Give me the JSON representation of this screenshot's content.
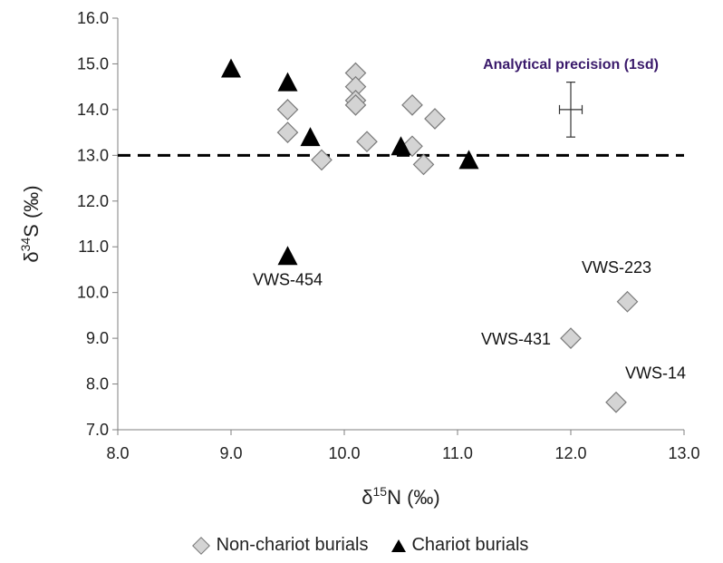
{
  "chart_data": {
    "type": "scatter",
    "xlabel_main": "δ",
    "xlabel_sup": "15",
    "xlabel_rest": "N (‰)",
    "ylabel_main": "δ",
    "ylabel_sup": "34",
    "ylabel_rest": "S (‰)",
    "xlim": [
      8.0,
      13.0
    ],
    "ylim": [
      7.0,
      16.0
    ],
    "x_ticks": [
      "8.0",
      "9.0",
      "10.0",
      "11.0",
      "12.0",
      "13.0"
    ],
    "y_ticks": [
      "7.0",
      "8.0",
      "9.0",
      "10.0",
      "11.0",
      "12.0",
      "13.0",
      "14.0",
      "15.0",
      "16.0"
    ],
    "reference_line_y": 13.0,
    "series": [
      {
        "name": "Non-chariot burials",
        "marker": "diamond",
        "color": "#d4d4d4",
        "points": [
          {
            "x": 9.5,
            "y": 14.0
          },
          {
            "x": 9.5,
            "y": 13.5
          },
          {
            "x": 9.8,
            "y": 12.9
          },
          {
            "x": 10.1,
            "y": 14.8
          },
          {
            "x": 10.1,
            "y": 14.5
          },
          {
            "x": 10.1,
            "y": 14.2
          },
          {
            "x": 10.1,
            "y": 14.1
          },
          {
            "x": 10.2,
            "y": 13.3
          },
          {
            "x": 10.6,
            "y": 14.1
          },
          {
            "x": 10.6,
            "y": 13.2
          },
          {
            "x": 10.7,
            "y": 12.8
          },
          {
            "x": 10.8,
            "y": 13.8
          },
          {
            "x": 12.0,
            "y": 9.0
          },
          {
            "x": 12.5,
            "y": 9.8
          },
          {
            "x": 12.4,
            "y": 7.6
          }
        ]
      },
      {
        "name": "Chariot burials",
        "marker": "triangle",
        "color": "#000000",
        "points": [
          {
            "x": 9.0,
            "y": 14.9
          },
          {
            "x": 9.5,
            "y": 14.6
          },
          {
            "x": 9.7,
            "y": 13.4
          },
          {
            "x": 10.5,
            "y": 13.2
          },
          {
            "x": 11.1,
            "y": 12.9
          },
          {
            "x": 9.5,
            "y": 10.8
          }
        ]
      }
    ],
    "annotations": [
      {
        "text": "VWS-454",
        "x": 9.5,
        "y": 10.8
      },
      {
        "text": "VWS-223",
        "x": 12.5,
        "y": 9.8
      },
      {
        "text": "VWS-431",
        "x": 12.0,
        "y": 9.0
      },
      {
        "text": "VWS-14",
        "x": 12.4,
        "y": 7.6
      }
    ],
    "error_bar": {
      "label": "Analytical precision (1sd)",
      "x": 12.0,
      "y": 14.0,
      "xerr": 0.1,
      "yerr": 0.6
    },
    "legend_position": "bottom"
  }
}
